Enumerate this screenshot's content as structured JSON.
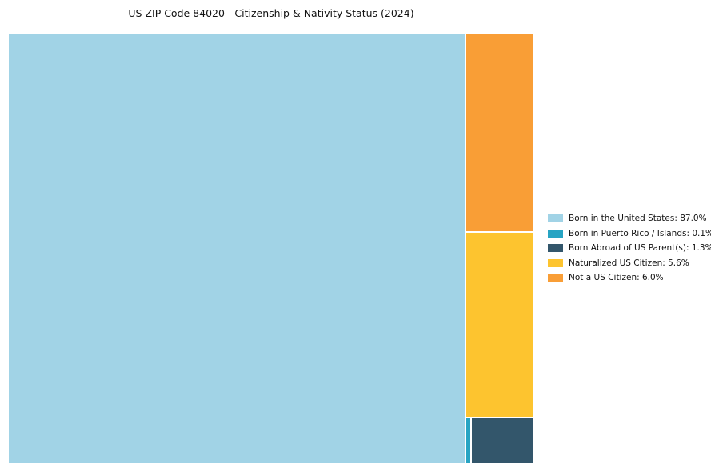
{
  "page": {
    "background": "#ffffff"
  },
  "chart_data": {
    "type": "treemap",
    "title": "US ZIP Code 84020 - Citizenship & Nativity Status (2024)",
    "unit": "%",
    "categories": [
      "Born in the United States",
      "Born in Puerto Rico / Islands",
      "Born Abroad of US Parent(s)",
      "Naturalized US Citizen",
      "Not a US Citizen"
    ],
    "values": [
      87.0,
      0.1,
      1.3,
      5.6,
      6.0
    ],
    "colors": [
      "#a1d3e6",
      "#27a4c3",
      "#33566b",
      "#fdc42f",
      "#f99e36"
    ],
    "legend_position": "right",
    "legend": [
      {
        "label": "Born in the United States: 87.0%",
        "color": "#a1d3e6"
      },
      {
        "label": "Born in Puerto Rico / Islands: 0.1%",
        "color": "#27a4c3"
      },
      {
        "label": "Born Abroad of US Parent(s): 1.3%",
        "color": "#33566b"
      },
      {
        "label": "Naturalized US Citizen: 5.6%",
        "color": "#fdc42f"
      },
      {
        "label": "Not a US Citizen: 6.0%",
        "color": "#f99e36"
      }
    ]
  }
}
